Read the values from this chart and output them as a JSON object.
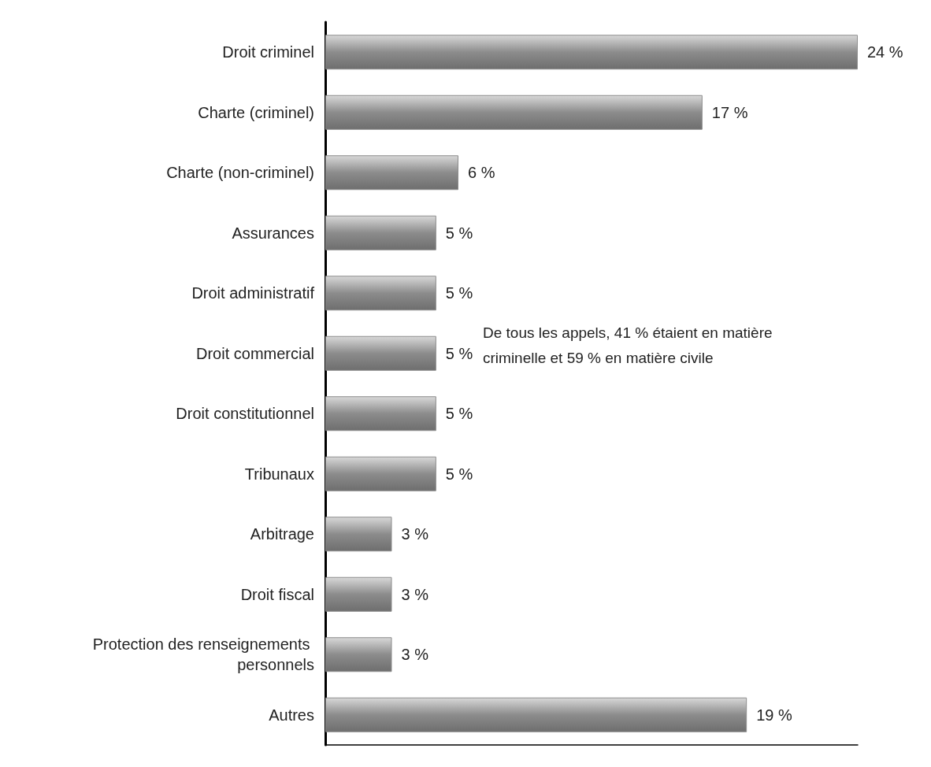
{
  "chart_data": {
    "type": "bar",
    "orientation": "horizontal",
    "categories": [
      "Droit criminel",
      "Charte (criminel)",
      "Charte (non-criminel)",
      "Assurances",
      "Droit administratif",
      "Droit commercial",
      "Droit constitutionnel",
      "Tribunaux",
      "Arbitrage",
      "Droit fiscal",
      "Protection des renseignements personnels",
      "Autres"
    ],
    "values": [
      24,
      17,
      6,
      5,
      5,
      5,
      5,
      5,
      3,
      3,
      3,
      19
    ],
    "value_labels": [
      "24 %",
      "17 %",
      "6 %",
      "5 %",
      "5 %",
      "5 %",
      "5 %",
      "5 %",
      "3 %",
      "3 %",
      "3 %",
      "19 %"
    ],
    "color": "#8c8c8c",
    "tick_labels": "y",
    "annotations": [
      "De tous les appels, 41 % étaient en matière criminelle et 59 % en matière civile"
    ]
  }
}
